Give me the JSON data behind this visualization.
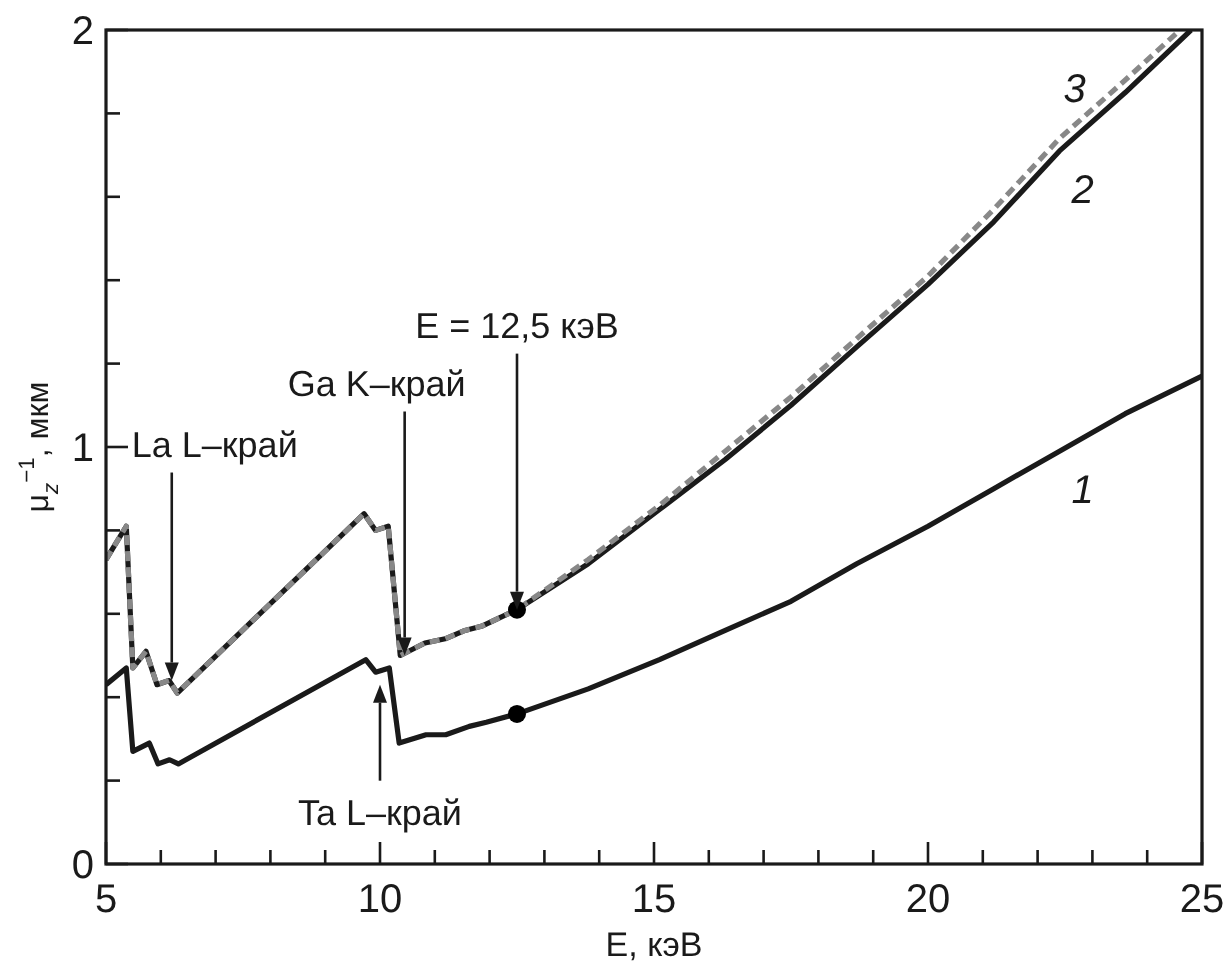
{
  "chart_data": {
    "type": "line",
    "xlabel": "E, кэВ",
    "ylabel": "μ$_{z}$$^{−1}$, мкм",
    "xlim": [
      5,
      25
    ],
    "ylim": [
      0,
      2
    ],
    "xticks": [
      5,
      {
        "value": 6,
        "label": null
      },
      {
        "value": 7,
        "label": null
      },
      {
        "value": 8,
        "label": null
      },
      {
        "value": 9,
        "label": null
      },
      10,
      {
        "value": 11,
        "label": null
      },
      {
        "value": 12,
        "label": null
      },
      {
        "value": 13,
        "label": null
      },
      {
        "value": 14,
        "label": null
      },
      15,
      {
        "value": 16,
        "label": null
      },
      {
        "value": 17,
        "label": null
      },
      {
        "value": 18,
        "label": null
      },
      {
        "value": 19,
        "label": null
      },
      20,
      {
        "value": 21,
        "label": null
      },
      {
        "value": 22,
        "label": null
      },
      {
        "value": 23,
        "label": null
      },
      {
        "value": 24,
        "label": null
      },
      25
    ],
    "yticks": [
      0,
      {
        "value": 0.2,
        "label": null
      },
      {
        "value": 0.4,
        "label": null
      },
      {
        "value": 0.6,
        "label": null
      },
      {
        "value": 0.8,
        "label": null
      },
      1,
      {
        "value": 1.2,
        "label": null
      },
      {
        "value": 1.4,
        "label": null
      },
      {
        "value": 1.6,
        "label": null
      },
      {
        "value": 1.8,
        "label": null
      },
      2
    ],
    "grid": false,
    "series": [
      {
        "name": "1",
        "color": "#1a1a1a",
        "line_style": "solid",
        "x": [
          5,
          5.37,
          5.49,
          5.79,
          5.95,
          6.16,
          6.32,
          9.74,
          9.92,
          10.17,
          10.35,
          10.84,
          11.2,
          11.63,
          11.94,
          12.5,
          13.8,
          15.1,
          16.3,
          17.5,
          18.7,
          20,
          21.2,
          22.4,
          23.6,
          25
        ],
        "values": [
          0.43,
          0.47,
          0.27,
          0.29,
          0.24,
          0.25,
          0.24,
          0.49,
          0.46,
          0.47,
          0.29,
          0.31,
          0.31,
          0.33,
          0.34,
          0.36,
          0.42,
          0.49,
          0.56,
          0.63,
          0.72,
          0.81,
          0.9,
          0.99,
          1.08,
          1.17
        ]
      },
      {
        "name": "2",
        "color": "#1a1a1a",
        "line_style": "solid",
        "x": [
          5,
          5.37,
          5.49,
          5.73,
          5.93,
          6.15,
          6.3,
          9.71,
          9.92,
          10.15,
          10.37,
          10.82,
          11.19,
          11.55,
          11.85,
          12.5,
          13.8,
          15.1,
          16.3,
          17.5,
          18.7,
          20,
          21.2,
          22.4,
          23.6,
          24.8
        ],
        "values": [
          0.73,
          0.81,
          0.47,
          0.51,
          0.43,
          0.44,
          0.41,
          0.84,
          0.8,
          0.81,
          0.5,
          0.53,
          0.54,
          0.56,
          0.57,
          0.61,
          0.72,
          0.85,
          0.97,
          1.1,
          1.24,
          1.39,
          1.54,
          1.71,
          1.85,
          2
        ]
      },
      {
        "name": "3",
        "color": "#888888",
        "line_style": "dashed",
        "x": [
          5,
          5.37,
          5.49,
          5.73,
          5.93,
          6.15,
          6.3,
          9.71,
          9.92,
          10.15,
          10.37,
          10.82,
          11.19,
          11.55,
          11.85,
          12.5,
          13.8,
          15.1,
          16.3,
          17.5,
          18.7,
          20,
          21.2,
          22.4,
          23.6,
          24.6
        ],
        "values": [
          0.73,
          0.81,
          0.47,
          0.51,
          0.43,
          0.44,
          0.41,
          0.84,
          0.8,
          0.81,
          0.5,
          0.53,
          0.54,
          0.56,
          0.57,
          0.61,
          0.73,
          0.86,
          0.99,
          1.12,
          1.26,
          1.41,
          1.57,
          1.74,
          1.88,
          2
        ]
      },
      {
        "type": "scatter",
        "color": "#000000",
        "marker": "circle",
        "x": [
          12.5,
          12.5
        ],
        "values": [
          0.36,
          0.61
        ]
      }
    ],
    "annotations": [
      {
        "text": "La L–край",
        "x": 6.2,
        "y": 0.44
      },
      {
        "text": "Ga K–край",
        "x": 10.45,
        "y": 0.5
      },
      {
        "text": "E = 12,5 кэВ",
        "x": 12.5,
        "y": 0.61
      },
      {
        "text": "Ta L–край",
        "x": 10,
        "y": 0.43
      }
    ]
  }
}
